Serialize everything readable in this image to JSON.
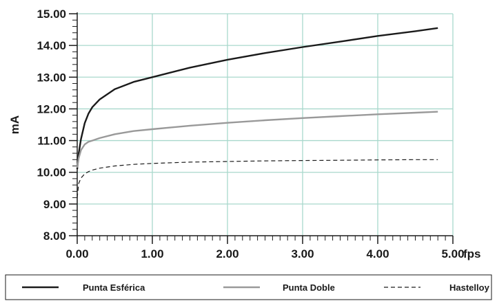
{
  "chart_data": {
    "type": "line",
    "xlabel": "fps",
    "ylabel": "mA",
    "xlim": [
      0,
      5
    ],
    "ylim": [
      8,
      15
    ],
    "x_ticks": [
      "0.00",
      "1.00",
      "2.00",
      "3.00",
      "4.00",
      "5.00"
    ],
    "y_ticks": [
      "8.00",
      "9.00",
      "10.00",
      "11.00",
      "12.00",
      "13.00",
      "14.00",
      "15.00"
    ],
    "grid": true,
    "legend_position": "bottom",
    "series": [
      {
        "name": "Punta Esférica",
        "color": "#1a1a1a",
        "style": "solid",
        "x": [
          0.0,
          0.02,
          0.05,
          0.1,
          0.15,
          0.2,
          0.3,
          0.5,
          0.75,
          1.0,
          1.5,
          2.0,
          2.5,
          3.0,
          3.5,
          4.0,
          4.5,
          4.8
        ],
        "y": [
          10.1,
          10.6,
          11.05,
          11.55,
          11.85,
          12.05,
          12.3,
          12.62,
          12.85,
          13.0,
          13.3,
          13.55,
          13.76,
          13.95,
          14.12,
          14.3,
          14.45,
          14.55
        ]
      },
      {
        "name": "Punta Doble",
        "color": "#999999",
        "style": "solid",
        "x": [
          0.0,
          0.02,
          0.05,
          0.1,
          0.15,
          0.2,
          0.3,
          0.5,
          0.75,
          1.0,
          1.5,
          2.0,
          2.5,
          3.0,
          3.5,
          4.0,
          4.5,
          4.8
        ],
        "y": [
          10.15,
          10.45,
          10.7,
          10.88,
          10.96,
          11.0,
          11.08,
          11.2,
          11.3,
          11.36,
          11.47,
          11.56,
          11.64,
          11.71,
          11.77,
          11.83,
          11.88,
          11.91
        ]
      },
      {
        "name": "Hastelloy",
        "color": "#1a1a1a",
        "style": "dashed",
        "x": [
          0.0,
          0.02,
          0.05,
          0.1,
          0.15,
          0.2,
          0.3,
          0.5,
          0.75,
          1.0,
          1.5,
          2.0,
          2.5,
          3.0,
          3.5,
          4.0,
          4.5,
          4.8
        ],
        "y": [
          9.2,
          9.65,
          9.82,
          9.95,
          10.02,
          10.07,
          10.13,
          10.2,
          10.25,
          10.28,
          10.32,
          10.34,
          10.36,
          10.37,
          10.38,
          10.39,
          10.4,
          10.4
        ]
      }
    ]
  },
  "colors": {
    "grid": "#a8d8cc",
    "axis": "#1a1a1a"
  }
}
